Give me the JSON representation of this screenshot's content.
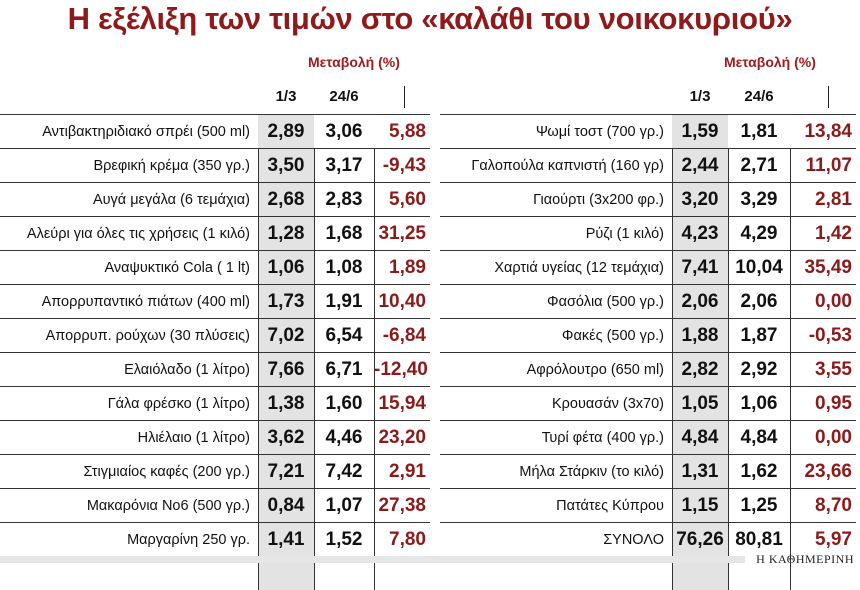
{
  "title": "Η εξέλιξη των τιμών στο «καλάθι του νοικοκυριού»",
  "header": {
    "change_label": "Μεταβολή (%)",
    "col1": "1/3",
    "col2": "24/6"
  },
  "colors": {
    "title": "#8e1a1a",
    "change": "#8a1b1b",
    "shade": "#e3e3e3"
  },
  "left_rows": [
    {
      "name": "Αντιβακτηριδιακό σπρέι (500 ml)",
      "v1": "2,89",
      "v2": "3,06",
      "ch": "5,88"
    },
    {
      "name": "Βρεφική κρέμα (350 γρ.)",
      "v1": "3,50",
      "v2": "3,17",
      "ch": "-9,43"
    },
    {
      "name": "Αυγά μεγάλα (6 τεμάχια)",
      "v1": "2,68",
      "v2": "2,83",
      "ch": "5,60"
    },
    {
      "name": "Αλεύρι για όλες τις χρήσεις (1 κιλό)",
      "v1": "1,28",
      "v2": "1,68",
      "ch": "31,25"
    },
    {
      "name": "Αναψυκτικό Cola ( 1 lt)",
      "v1": "1,06",
      "v2": "1,08",
      "ch": "1,89"
    },
    {
      "name": "Απορρυπαντικό πιάτων (400 ml)",
      "v1": "1,73",
      "v2": "1,91",
      "ch": "10,40"
    },
    {
      "name": "Απορρυπ. ρούχων (30 πλύσεις)",
      "v1": "7,02",
      "v2": "6,54",
      "ch": "-6,84"
    },
    {
      "name": "Ελαιόλαδο (1 λίτρο)",
      "v1": "7,66",
      "v2": "6,71",
      "ch": "-12,40"
    },
    {
      "name": "Γάλα φρέσκο (1 λίτρο)",
      "v1": "1,38",
      "v2": "1,60",
      "ch": "15,94"
    },
    {
      "name": "Ηλιέλαιο (1 λίτρο)",
      "v1": "3,62",
      "v2": "4,46",
      "ch": "23,20"
    },
    {
      "name": "Στιγμιαίος καφές (200 γρ.)",
      "v1": "7,21",
      "v2": "7,42",
      "ch": "2,91"
    },
    {
      "name": "Μακαρόνια Νο6 (500 γρ.)",
      "v1": "0,84",
      "v2": "1,07",
      "ch": "27,38"
    },
    {
      "name": "Μαργαρίνη 250 γρ.",
      "v1": "1,41",
      "v2": "1,52",
      "ch": "7,80"
    }
  ],
  "right_rows": [
    {
      "name": "Ψωμί τοστ (700 γρ.)",
      "v1": "1,59",
      "v2": "1,81",
      "ch": "13,84"
    },
    {
      "name": "Γαλοπούλα καπνιστή (160 γρ)",
      "v1": "2,44",
      "v2": "2,71",
      "ch": "11,07"
    },
    {
      "name": "Γιαούρτι (3x200 φρ.)",
      "v1": "3,20",
      "v2": "3,29",
      "ch": "2,81"
    },
    {
      "name": "Ρύζι (1 κιλό)",
      "v1": "4,23",
      "v2": "4,29",
      "ch": "1,42"
    },
    {
      "name": "Χαρτιά υγείας (12 τεμάχια)",
      "v1": "7,41",
      "v2": "10,04",
      "ch": "35,49"
    },
    {
      "name": "Φασόλια (500 γρ.)",
      "v1": "2,06",
      "v2": "2,06",
      "ch": "0,00"
    },
    {
      "name": "Φακές (500 γρ.)",
      "v1": "1,88",
      "v2": "1,87",
      "ch": "-0,53"
    },
    {
      "name": "Αφρόλουτρο (650 ml)",
      "v1": "2,82",
      "v2": "2,92",
      "ch": "3,55"
    },
    {
      "name": "Κρουασάν (3x70)",
      "v1": "1,05",
      "v2": "1,06",
      "ch": "0,95"
    },
    {
      "name": "Τυρί φέτα (400 γρ.)",
      "v1": "4,84",
      "v2": "4,84",
      "ch": "0,00"
    },
    {
      "name": "Μήλα Στάρκιν (το κιλό)",
      "v1": "1,31",
      "v2": "1,62",
      "ch": "23,66"
    },
    {
      "name": "Πατάτες Κύπρου",
      "v1": "1,15",
      "v2": "1,25",
      "ch": "8,70"
    },
    {
      "name": "ΣΥΝΟΛΟ",
      "v1": "76,26",
      "v2": "80,81",
      "ch": "5,97"
    }
  ],
  "brand": "Η ΚΑΘΗΜΕΡΙΝΗ"
}
